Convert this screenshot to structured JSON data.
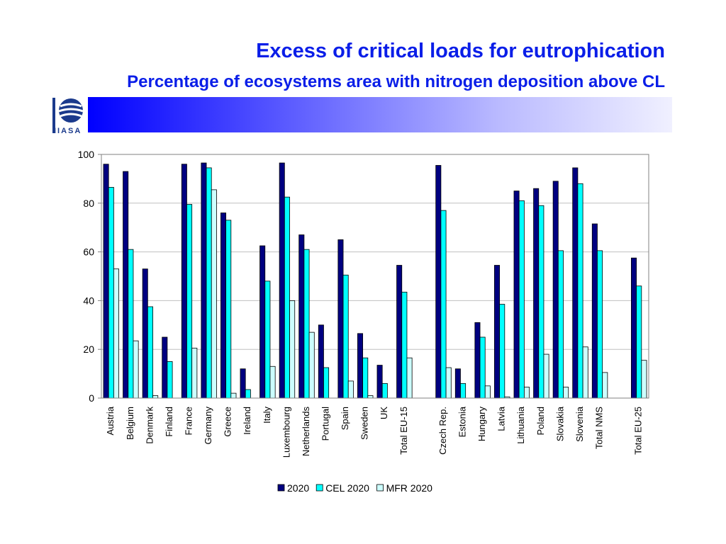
{
  "header": {
    "title": "Excess of critical loads for eutrophication",
    "subtitle": "Percentage of ecosystems area with nitrogen deposition above CL",
    "logo_text": "IIASA"
  },
  "colors": {
    "title": "#0a1ee8",
    "banner_start": "#0000ff",
    "banner_end": "#f0f0ff"
  },
  "chart_data": {
    "type": "bar",
    "title": "",
    "xlabel": "",
    "ylabel": "",
    "ylim": [
      0,
      100
    ],
    "yticks": [
      0,
      20,
      40,
      60,
      80,
      100
    ],
    "grid": true,
    "legend_position": "bottom",
    "categories": [
      "Austria",
      "Belgium",
      "Denmark",
      "Finland",
      "France",
      "Germany",
      "Greece",
      "Ireland",
      "Italy",
      "Luxembourg",
      "Netherlands",
      "Portugal",
      "Spain",
      "Sweden",
      "UK",
      "Total EU-15",
      "",
      "Czech Rep.",
      "Estonia",
      "Hungary",
      "Latvia",
      "Lithuania",
      "Poland",
      "Slovakia",
      "Slovenia",
      "Total NMS",
      "",
      "Total EU-25"
    ],
    "series": [
      {
        "name": "2020",
        "color": "#000080",
        "values": [
          96,
          93,
          53,
          25,
          96,
          96.5,
          76,
          12,
          62.5,
          96.5,
          67,
          30,
          65,
          26.5,
          13.5,
          54.5,
          null,
          95.5,
          12,
          31,
          54.5,
          85,
          86,
          89,
          94.5,
          71.5,
          null,
          57.5
        ]
      },
      {
        "name": "CEL 2020",
        "color": "#00ffff",
        "values": [
          86.5,
          61,
          37.5,
          15,
          79.5,
          94.5,
          73,
          3.5,
          48,
          82.5,
          61,
          12.5,
          50.5,
          16.5,
          6,
          43.5,
          null,
          77,
          6,
          25,
          38.5,
          81,
          79,
          60.5,
          88,
          60.5,
          null,
          46
        ]
      },
      {
        "name": "MFR 2020",
        "color": "#ccffff",
        "values": [
          53,
          23.5,
          1,
          0,
          20.5,
          85.5,
          2,
          0,
          13,
          40,
          27,
          0,
          7,
          1,
          0,
          16.5,
          null,
          12.5,
          0,
          5,
          0.5,
          4.5,
          18,
          4.5,
          21,
          10.5,
          null,
          15.5
        ]
      }
    ]
  }
}
